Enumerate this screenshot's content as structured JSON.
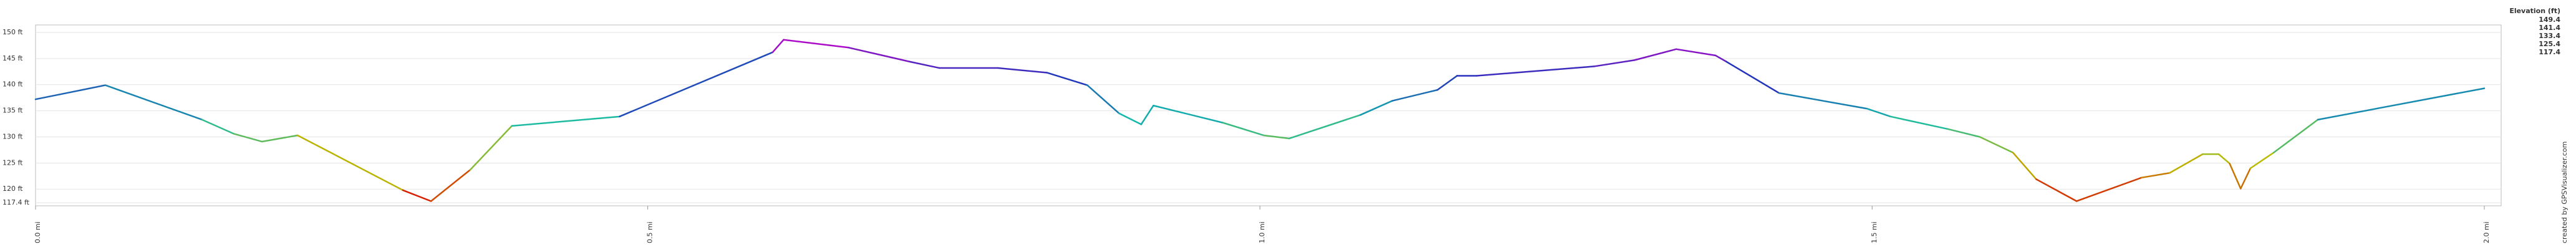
{
  "chart_data": {
    "type": "line",
    "y_unit_labels": true,
    "legend_title": "Elevation (ft)",
    "legend": [
      {
        "value": 149.4,
        "color": "#cc00cc"
      },
      {
        "value": 141.4,
        "color": "#2233bb"
      },
      {
        "value": 133.4,
        "color": "#11bbaa"
      },
      {
        "value": 125.4,
        "color": "#bbbb00"
      },
      {
        "value": 117.4,
        "color": "#dd0000"
      }
    ],
    "credit": "created by GPSVisualizer.com",
    "x": [
      0,
      0.057,
      0.136,
      0.162,
      0.185,
      0.214,
      0.3,
      0.323,
      0.355,
      0.389,
      0.477,
      0.602,
      0.611,
      0.664,
      0.714,
      0.738,
      0.786,
      0.826,
      0.859,
      0.885,
      0.903,
      0.913,
      0.97,
      1.003,
      1.024,
      1.082,
      1.108,
      1.145,
      1.161,
      1.177,
      1.273,
      1.306,
      1.34,
      1.372,
      1.381,
      1.424,
      1.496,
      1.515,
      1.562,
      1.588,
      1.615,
      1.634,
      1.667,
      1.72,
      1.743,
      1.77,
      1.783,
      1.792,
      1.801,
      1.809,
      1.828,
      1.864,
      2.0
    ],
    "series": [
      {
        "name": "Elevation",
        "values": [
          137.2,
          139.9,
          133.3,
          130.6,
          129.1,
          130.3,
          119.8,
          117.7,
          123.7,
          132.1,
          133.9,
          146.2,
          148.6,
          147.1,
          144.4,
          143.2,
          143.2,
          142.3,
          139.9,
          134.5,
          132.4,
          136,
          132.7,
          130.3,
          129.7,
          134.2,
          136.9,
          139,
          141.7,
          141.7,
          143.5,
          144.7,
          146.8,
          145.6,
          144.4,
          138.4,
          135.4,
          133.9,
          131.5,
          130,
          127,
          121.9,
          117.7,
          122.2,
          123.1,
          126.7,
          126.7,
          124.9,
          120.1,
          124,
          127,
          133.3,
          139.3
        ]
      }
    ],
    "xlim": [
      0,
      2.0
    ],
    "xticks": [
      {
        "value": 0,
        "label": "0.0 mi"
      },
      {
        "value": 0.5,
        "label": "0.5 mi"
      },
      {
        "value": 1.0,
        "label": "1.0 mi"
      },
      {
        "value": 1.5,
        "label": "1.5 mi"
      },
      {
        "value": 2.0,
        "label": "2.0 mi"
      }
    ],
    "ylim": [
      117.4,
      150
    ],
    "yticks": [
      {
        "value": 117.4,
        "label": "117.4 ft"
      },
      {
        "value": 120,
        "label": "120 ft"
      },
      {
        "value": 125,
        "label": "125 ft"
      },
      {
        "value": 130,
        "label": "130 ft"
      },
      {
        "value": 135,
        "label": "135 ft"
      },
      {
        "value": 140,
        "label": "140 ft"
      },
      {
        "value": 145,
        "label": "145 ft"
      },
      {
        "value": 150,
        "label": "150 ft"
      }
    ],
    "grid": true
  }
}
